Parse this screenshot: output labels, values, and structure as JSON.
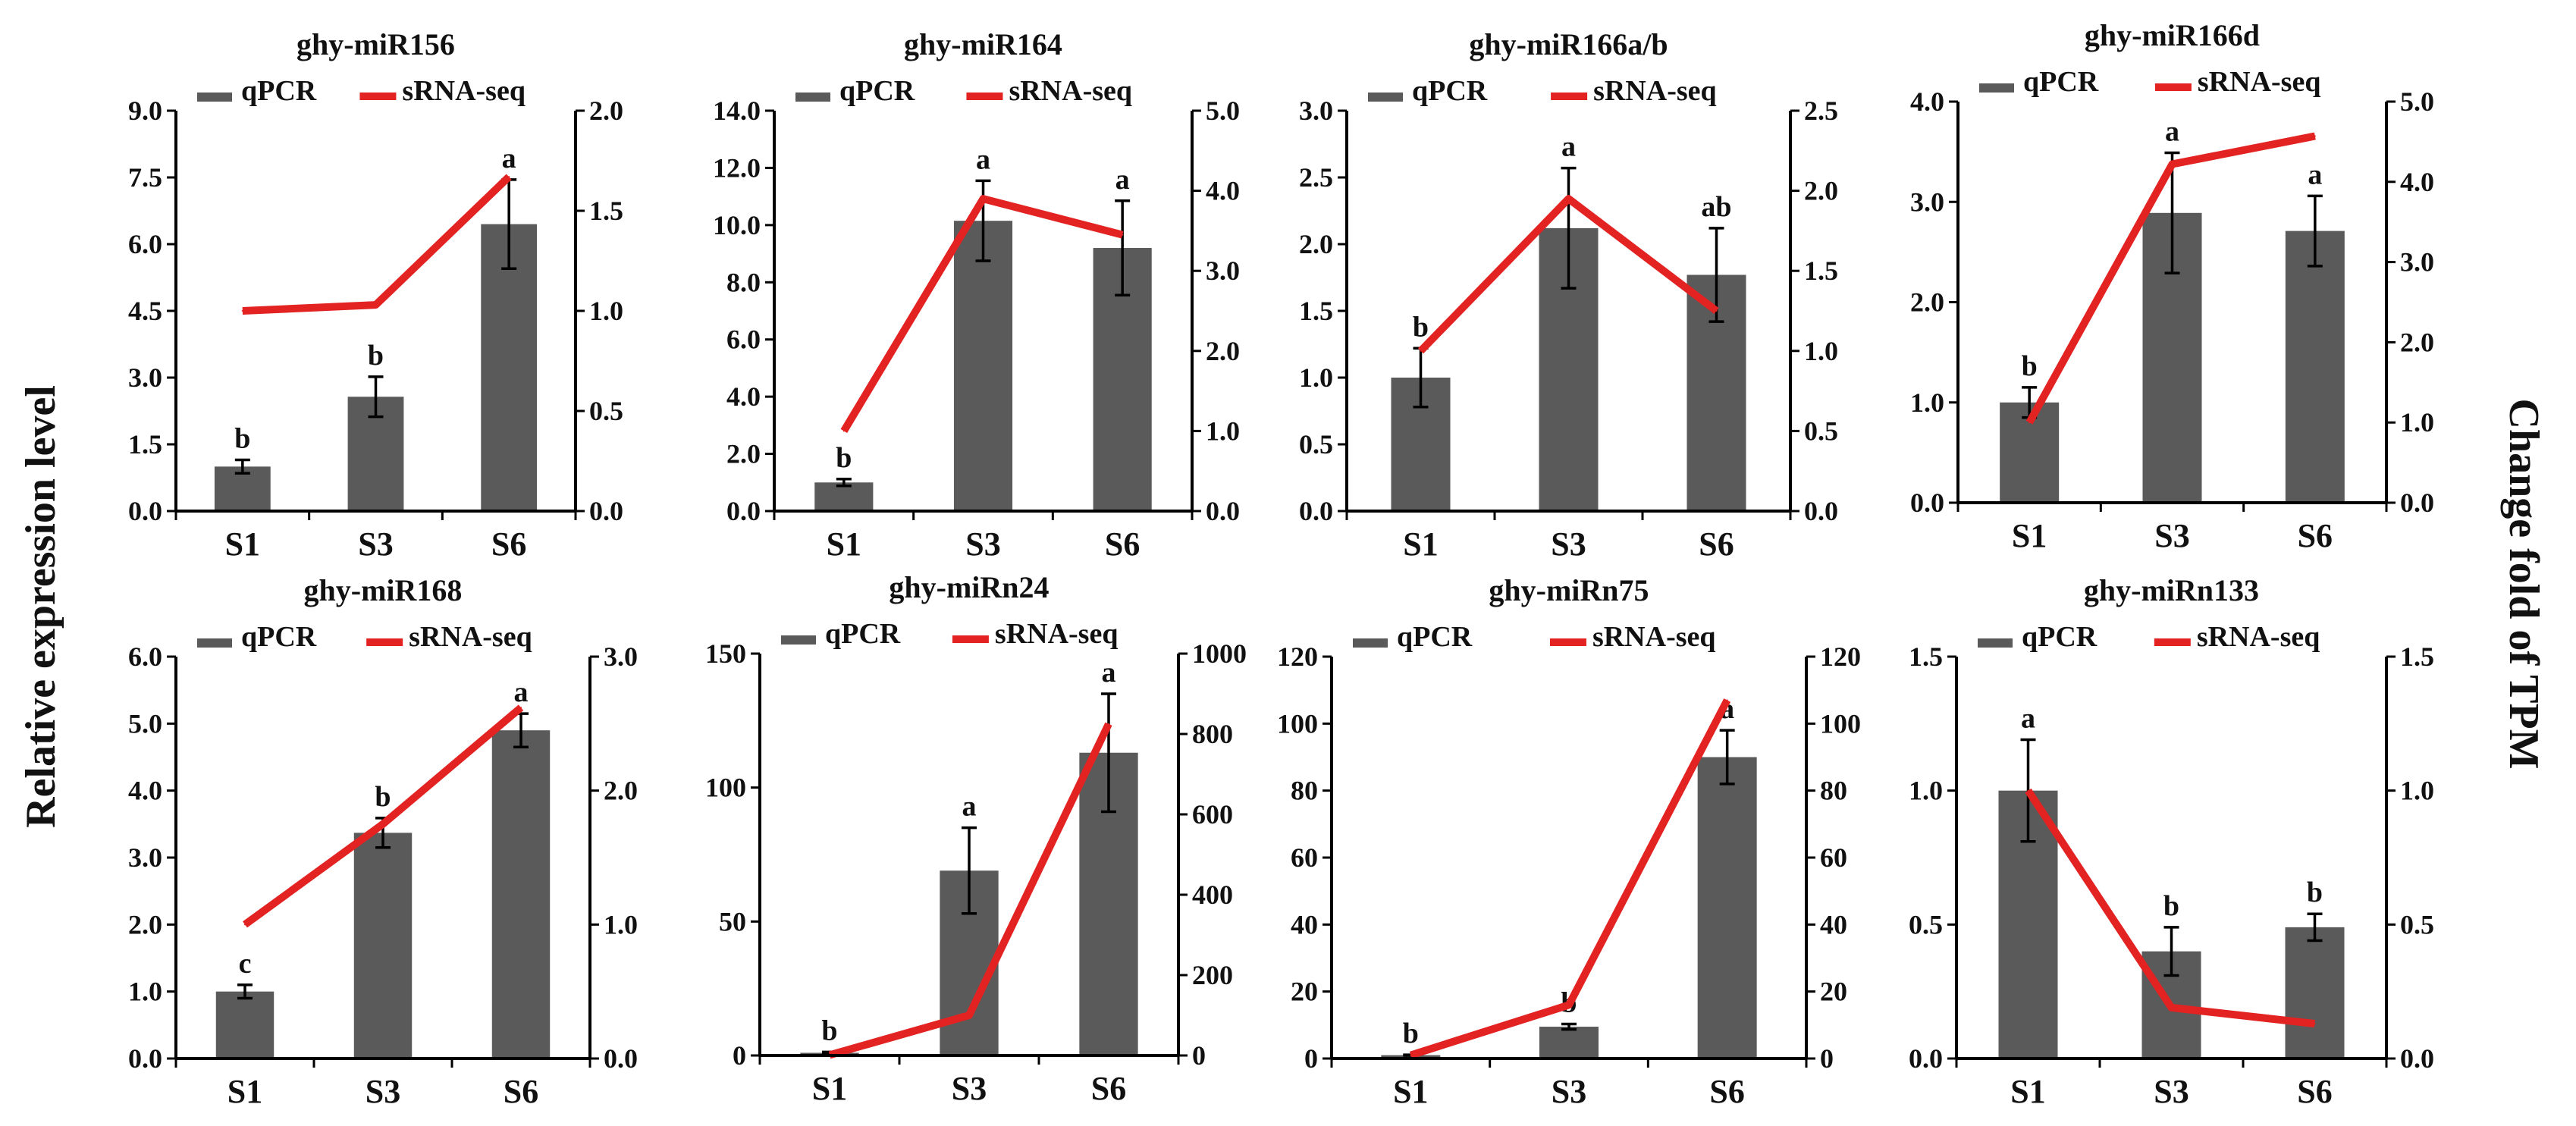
{
  "figure": {
    "left_label": "Relative expression level",
    "right_label": "Change fold of TPM"
  },
  "chart_data": [
    {
      "type": "bar",
      "title": "ghy-miR156",
      "categories": [
        "S1",
        "S3",
        "S6"
      ],
      "legend": [
        "qPCR",
        "sRNA-seq"
      ],
      "ylim_left": [
        0,
        9
      ],
      "ylim_right": [
        0,
        2
      ],
      "left_ticks": [
        0,
        1.5,
        3,
        4.5,
        6,
        7.5,
        9
      ],
      "left_tick_labels": [
        "0.0",
        "1.5",
        "3.0",
        "4.5",
        "6.0",
        "7.5",
        "9.0"
      ],
      "right_ticks": [
        0,
        0.5,
        1,
        1.5,
        2
      ],
      "right_tick_labels": [
        "0.0",
        "0.5",
        "1.0",
        "1.5",
        "2.0"
      ],
      "series": [
        {
          "name": "qPCR",
          "kind": "bar",
          "axis": "left",
          "values": [
            1.0,
            2.57,
            6.45
          ],
          "errors": [
            0.15,
            0.45,
            1.0
          ]
        },
        {
          "name": "sRNA-seq",
          "kind": "line",
          "axis": "right",
          "values": [
            1.0,
            1.03,
            1.67
          ]
        }
      ],
      "significance": [
        "b",
        "b",
        "a"
      ]
    },
    {
      "type": "bar",
      "title": "ghy-miR164",
      "categories": [
        "S1",
        "S3",
        "S6"
      ],
      "legend": [
        "qPCR",
        "sRNA-seq"
      ],
      "ylim_left": [
        0,
        14
      ],
      "ylim_right": [
        0,
        5
      ],
      "left_ticks": [
        0,
        2,
        4,
        6,
        8,
        10,
        12,
        14
      ],
      "left_tick_labels": [
        "0.0",
        "2.0",
        "4.0",
        "6.0",
        "8.0",
        "10.0",
        "12.0",
        "14.0"
      ],
      "right_ticks": [
        0,
        1,
        2,
        3,
        4,
        5
      ],
      "right_tick_labels": [
        "0.0",
        "1.0",
        "2.0",
        "3.0",
        "4.0",
        "5.0"
      ],
      "series": [
        {
          "name": "qPCR",
          "kind": "bar",
          "axis": "left",
          "values": [
            1.0,
            10.15,
            9.2
          ],
          "errors": [
            0.12,
            1.4,
            1.65
          ]
        },
        {
          "name": "sRNA-seq",
          "kind": "line",
          "axis": "right",
          "values": [
            1.0,
            3.9,
            3.45
          ]
        }
      ],
      "significance": [
        "b",
        "a",
        "a"
      ]
    },
    {
      "type": "bar",
      "title": "ghy-miR166a/b",
      "categories": [
        "S1",
        "S3",
        "S6"
      ],
      "legend": [
        "qPCR",
        "sRNA-seq"
      ],
      "ylim_left": [
        0,
        3
      ],
      "ylim_right": [
        0,
        2.5
      ],
      "left_ticks": [
        0,
        0.5,
        1,
        1.5,
        2,
        2.5,
        3
      ],
      "left_tick_labels": [
        "0.0",
        "0.5",
        "1.0",
        "1.5",
        "2.0",
        "2.5",
        "3.0"
      ],
      "right_ticks": [
        0,
        0.5,
        1,
        1.5,
        2,
        2.5
      ],
      "right_tick_labels": [
        "0.0",
        "0.5",
        "1.0",
        "1.5",
        "2.0",
        "2.5"
      ],
      "series": [
        {
          "name": "qPCR",
          "kind": "bar",
          "axis": "left",
          "values": [
            1.0,
            2.12,
            1.77
          ],
          "errors": [
            0.22,
            0.45,
            0.35
          ]
        },
        {
          "name": "sRNA-seq",
          "kind": "line",
          "axis": "right",
          "values": [
            1.0,
            1.95,
            1.25
          ]
        }
      ],
      "significance": [
        "b",
        "a",
        "ab"
      ]
    },
    {
      "type": "bar",
      "title": "ghy-miR166d",
      "categories": [
        "S1",
        "S3",
        "S6"
      ],
      "legend": [
        "qPCR",
        "sRNA-seq"
      ],
      "ylim_left": [
        0,
        4
      ],
      "ylim_right": [
        0,
        5
      ],
      "left_ticks": [
        0,
        1,
        2,
        3,
        4
      ],
      "left_tick_labels": [
        "0.0",
        "1.0",
        "2.0",
        "3.0",
        "4.0"
      ],
      "right_ticks": [
        0,
        1,
        2,
        3,
        4,
        5
      ],
      "right_tick_labels": [
        "0.0",
        "1.0",
        "2.0",
        "3.0",
        "4.0",
        "5.0"
      ],
      "series": [
        {
          "name": "qPCR",
          "kind": "bar",
          "axis": "left",
          "values": [
            1.0,
            2.89,
            2.71
          ],
          "errors": [
            0.15,
            0.6,
            0.35
          ]
        },
        {
          "name": "sRNA-seq",
          "kind": "line",
          "axis": "right",
          "values": [
            1.0,
            4.22,
            4.57
          ]
        }
      ],
      "significance": [
        "b",
        "a",
        "a"
      ]
    },
    {
      "type": "bar",
      "title": "ghy-miR168",
      "categories": [
        "S1",
        "S3",
        "S6"
      ],
      "legend": [
        "qPCR",
        "sRNA-seq"
      ],
      "ylim_left": [
        0,
        6
      ],
      "ylim_right": [
        0,
        3
      ],
      "left_ticks": [
        0,
        1,
        2,
        3,
        4,
        5,
        6
      ],
      "left_tick_labels": [
        "0.0",
        "1.0",
        "2.0",
        "3.0",
        "4.0",
        "5.0",
        "6.0"
      ],
      "right_ticks": [
        0,
        1,
        2,
        3
      ],
      "right_tick_labels": [
        "0.0",
        "1.0",
        "2.0",
        "3.0"
      ],
      "series": [
        {
          "name": "qPCR",
          "kind": "bar",
          "axis": "left",
          "values": [
            1.0,
            3.37,
            4.9
          ],
          "errors": [
            0.1,
            0.22,
            0.25
          ]
        },
        {
          "name": "sRNA-seq",
          "kind": "line",
          "axis": "right",
          "values": [
            1.0,
            1.75,
            2.62
          ]
        }
      ],
      "significance": [
        "c",
        "b",
        "a"
      ]
    },
    {
      "type": "bar",
      "title": "ghy-miRn24",
      "categories": [
        "S1",
        "S3",
        "S6"
      ],
      "legend": [
        "qPCR",
        "sRNA-seq"
      ],
      "ylim_left": [
        0,
        150
      ],
      "ylim_right": [
        0,
        1000
      ],
      "left_ticks": [
        0,
        50,
        100,
        150
      ],
      "left_tick_labels": [
        "0",
        "50",
        "100",
        "150"
      ],
      "right_ticks": [
        0,
        200,
        400,
        600,
        800,
        1000
      ],
      "right_tick_labels": [
        "0",
        "200",
        "400",
        "600",
        "800",
        "1000"
      ],
      "series": [
        {
          "name": "qPCR",
          "kind": "bar",
          "axis": "left",
          "values": [
            1.0,
            69.0,
            113.0
          ],
          "errors": [
            0.3,
            16.0,
            22.0
          ]
        },
        {
          "name": "sRNA-seq",
          "kind": "line",
          "axis": "right",
          "values": [
            1.0,
            100.0,
            825.0
          ]
        }
      ],
      "significance": [
        "b",
        "a",
        "a"
      ]
    },
    {
      "type": "bar",
      "title": "ghy-miRn75",
      "categories": [
        "S1",
        "S3",
        "S6"
      ],
      "legend": [
        "qPCR",
        "sRNA-seq"
      ],
      "ylim_left": [
        0,
        120
      ],
      "ylim_right": [
        0,
        120
      ],
      "left_ticks": [
        0,
        20,
        40,
        60,
        80,
        100,
        120
      ],
      "left_tick_labels": [
        "0",
        "20",
        "40",
        "60",
        "80",
        "100",
        "120"
      ],
      "right_ticks": [
        0,
        20,
        40,
        60,
        80,
        100,
        120
      ],
      "right_tick_labels": [
        "0",
        "20",
        "40",
        "60",
        "80",
        "100",
        "120"
      ],
      "series": [
        {
          "name": "qPCR",
          "kind": "bar",
          "axis": "left",
          "values": [
            1.0,
            9.5,
            90.0
          ],
          "errors": [
            0.1,
            0.8,
            8.0
          ]
        },
        {
          "name": "sRNA-seq",
          "kind": "line",
          "axis": "right",
          "values": [
            1.0,
            16.0,
            107.0
          ]
        }
      ],
      "significance": [
        "b",
        "b",
        "a"
      ]
    },
    {
      "type": "bar",
      "title": "ghy-miRn133",
      "categories": [
        "S1",
        "S3",
        "S6"
      ],
      "legend": [
        "qPCR",
        "sRNA-seq"
      ],
      "ylim_left": [
        0,
        1.5
      ],
      "ylim_right": [
        0,
        1.5
      ],
      "left_ticks": [
        0,
        0.5,
        1,
        1.5
      ],
      "left_tick_labels": [
        "0.0",
        "0.5",
        "1.0",
        "1.5"
      ],
      "right_ticks": [
        0,
        0.5,
        1,
        1.5
      ],
      "right_tick_labels": [
        "0.0",
        "0.5",
        "1.0",
        "1.5"
      ],
      "series": [
        {
          "name": "qPCR",
          "kind": "bar",
          "axis": "left",
          "values": [
            1.0,
            0.4,
            0.49
          ],
          "errors": [
            0.19,
            0.09,
            0.05
          ]
        },
        {
          "name": "sRNA-seq",
          "kind": "line",
          "axis": "right",
          "values": [
            1.0,
            0.19,
            0.13
          ]
        }
      ],
      "significance": [
        "a",
        "b",
        "b"
      ]
    }
  ]
}
